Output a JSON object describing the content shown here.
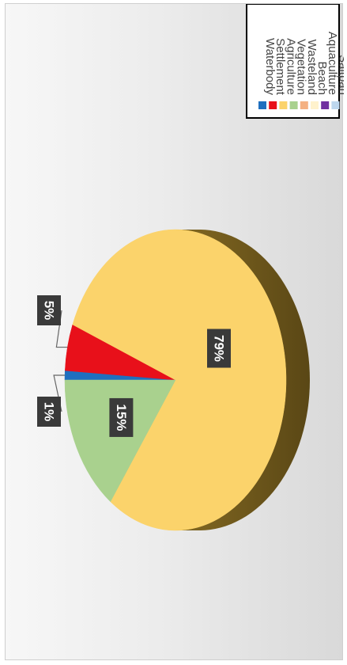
{
  "chart_data": {
    "type": "pie",
    "style": "3d",
    "orientation": "rotated 90 degrees clockwise",
    "categories": [
      "Waterbody",
      "Settlement",
      "Agriculture",
      "Vegetation",
      "Wasteland",
      "Beach",
      "Aquaculture",
      "Saltpan"
    ],
    "values": [
      1,
      5,
      79,
      15,
      0,
      0,
      0,
      0
    ],
    "data_labels": [
      "1%",
      "5%",
      "79%",
      "15%",
      null,
      null,
      null,
      null
    ],
    "colors": [
      "#1f6fbf",
      "#e8101a",
      "#fbd36b",
      "#a9d18e",
      "#f4b183",
      "#fff2cc",
      "#7030a0",
      "#bdd7ee"
    ],
    "legend_position": "right",
    "grid": false,
    "title": ""
  }
}
